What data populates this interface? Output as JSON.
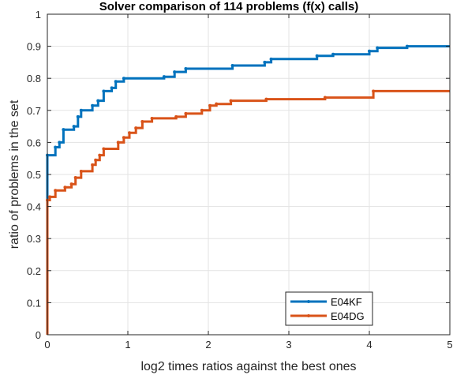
{
  "chart_data": {
    "type": "line",
    "title": "Solver comparison of 114 problems (f(x) calls)",
    "xlabel": "log2 times ratios against the best ones",
    "ylabel": "ratio of problems in the set",
    "xlim": [
      0,
      5
    ],
    "ylim": [
      0,
      1
    ],
    "xticks": [
      "0",
      "1",
      "2",
      "3",
      "4",
      "5"
    ],
    "yticks": [
      "0",
      "0.1",
      "0.2",
      "0.3",
      "0.4",
      "0.5",
      "0.6",
      "0.7",
      "0.8",
      "0.9",
      "1"
    ],
    "grid": true,
    "legend_position": "bottom-right",
    "series": [
      {
        "name": "E04KF",
        "color": "#0072BD",
        "points": [
          [
            0,
            0
          ],
          [
            0,
            0.56
          ],
          [
            0.1,
            0.56
          ],
          [
            0.1,
            0.585
          ],
          [
            0.15,
            0.585
          ],
          [
            0.15,
            0.6
          ],
          [
            0.2,
            0.6
          ],
          [
            0.2,
            0.64
          ],
          [
            0.33,
            0.64
          ],
          [
            0.33,
            0.65
          ],
          [
            0.38,
            0.65
          ],
          [
            0.38,
            0.68
          ],
          [
            0.42,
            0.68
          ],
          [
            0.42,
            0.7
          ],
          [
            0.56,
            0.7
          ],
          [
            0.56,
            0.715
          ],
          [
            0.63,
            0.715
          ],
          [
            0.63,
            0.73
          ],
          [
            0.7,
            0.73
          ],
          [
            0.7,
            0.76
          ],
          [
            0.8,
            0.76
          ],
          [
            0.8,
            0.77
          ],
          [
            0.85,
            0.77
          ],
          [
            0.85,
            0.79
          ],
          [
            0.95,
            0.79
          ],
          [
            0.95,
            0.8
          ],
          [
            1.45,
            0.8
          ],
          [
            1.45,
            0.805
          ],
          [
            1.58,
            0.805
          ],
          [
            1.58,
            0.82
          ],
          [
            1.72,
            0.82
          ],
          [
            1.72,
            0.83
          ],
          [
            2.3,
            0.83
          ],
          [
            2.3,
            0.84
          ],
          [
            2.7,
            0.84
          ],
          [
            2.7,
            0.85
          ],
          [
            2.78,
            0.85
          ],
          [
            2.78,
            0.86
          ],
          [
            3.35,
            0.86
          ],
          [
            3.35,
            0.87
          ],
          [
            3.55,
            0.87
          ],
          [
            3.55,
            0.875
          ],
          [
            4.0,
            0.875
          ],
          [
            4.0,
            0.885
          ],
          [
            4.1,
            0.885
          ],
          [
            4.1,
            0.895
          ],
          [
            4.47,
            0.895
          ],
          [
            4.47,
            0.9
          ],
          [
            5,
            0.9
          ]
        ]
      },
      {
        "name": "E04DG",
        "color": "#D95319",
        "points": [
          [
            0,
            0
          ],
          [
            0,
            0.42
          ],
          [
            0.03,
            0.42
          ],
          [
            0.03,
            0.43
          ],
          [
            0.1,
            0.43
          ],
          [
            0.1,
            0.45
          ],
          [
            0.22,
            0.45
          ],
          [
            0.22,
            0.46
          ],
          [
            0.3,
            0.46
          ],
          [
            0.3,
            0.47
          ],
          [
            0.35,
            0.47
          ],
          [
            0.35,
            0.49
          ],
          [
            0.42,
            0.49
          ],
          [
            0.42,
            0.51
          ],
          [
            0.56,
            0.51
          ],
          [
            0.56,
            0.53
          ],
          [
            0.6,
            0.53
          ],
          [
            0.6,
            0.545
          ],
          [
            0.65,
            0.545
          ],
          [
            0.65,
            0.56
          ],
          [
            0.7,
            0.56
          ],
          [
            0.7,
            0.58
          ],
          [
            0.88,
            0.58
          ],
          [
            0.88,
            0.6
          ],
          [
            0.95,
            0.6
          ],
          [
            0.95,
            0.615
          ],
          [
            1.02,
            0.615
          ],
          [
            1.02,
            0.63
          ],
          [
            1.1,
            0.63
          ],
          [
            1.1,
            0.645
          ],
          [
            1.18,
            0.645
          ],
          [
            1.18,
            0.665
          ],
          [
            1.3,
            0.665
          ],
          [
            1.3,
            0.675
          ],
          [
            1.6,
            0.675
          ],
          [
            1.6,
            0.68
          ],
          [
            1.72,
            0.68
          ],
          [
            1.72,
            0.69
          ],
          [
            1.92,
            0.69
          ],
          [
            1.92,
            0.7
          ],
          [
            2.02,
            0.7
          ],
          [
            2.02,
            0.715
          ],
          [
            2.1,
            0.715
          ],
          [
            2.1,
            0.72
          ],
          [
            2.28,
            0.72
          ],
          [
            2.28,
            0.73
          ],
          [
            2.72,
            0.73
          ],
          [
            2.72,
            0.735
          ],
          [
            3.45,
            0.735
          ],
          [
            3.45,
            0.74
          ],
          [
            4.05,
            0.74
          ],
          [
            4.05,
            0.76
          ],
          [
            5,
            0.76
          ]
        ]
      }
    ]
  }
}
